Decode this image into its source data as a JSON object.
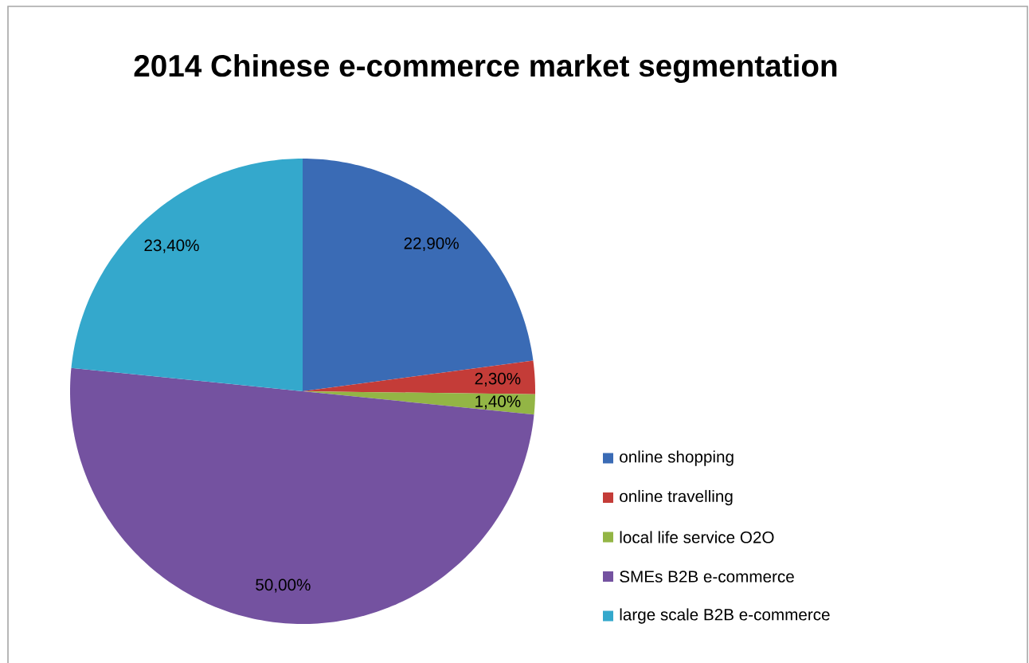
{
  "chart_data": {
    "type": "pie",
    "title": "2014 Chinese e-commerce market segmentation",
    "categories": [
      "online shopping",
      "online travelling",
      "local life service O2O",
      "SMEs B2B e-commerce",
      "large scale B2B e-commerce"
    ],
    "values": [
      22.9,
      2.3,
      1.4,
      50.0,
      23.4
    ],
    "colors": [
      "#3a6bb5",
      "#c43c38",
      "#93b545",
      "#7452a0",
      "#34a8cc"
    ],
    "value_labels": [
      "22,90%",
      "2,30%",
      "1,40%",
      "50,00%",
      "23,40%"
    ],
    "legend": "right"
  }
}
